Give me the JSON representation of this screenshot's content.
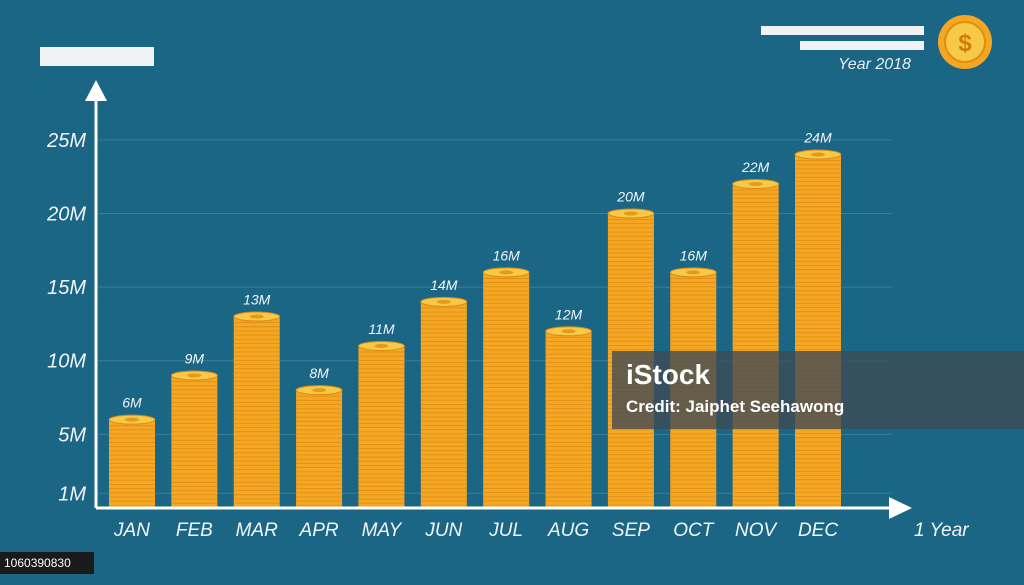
{
  "chart_data": {
    "type": "bar",
    "categories": [
      "JAN",
      "FEB",
      "MAR",
      "APR",
      "MAY",
      "JUN",
      "JUL",
      "AUG",
      "SEP",
      "OCT",
      "NOV",
      "DEC"
    ],
    "values": [
      6,
      9,
      13,
      8,
      11,
      14,
      16,
      12,
      20,
      16,
      22,
      24
    ],
    "value_labels": [
      "6M",
      "9M",
      "13M",
      "8M",
      "11M",
      "14M",
      "16M",
      "12M",
      "20M",
      "16M",
      "22M",
      "24M"
    ],
    "y_ticks": [
      {
        "value": 1,
        "label": "1M"
      },
      {
        "value": 5,
        "label": "5M"
      },
      {
        "value": 10,
        "label": "10M"
      },
      {
        "value": 15,
        "label": "15M"
      },
      {
        "value": 20,
        "label": "20M"
      },
      {
        "value": 25,
        "label": "25M"
      }
    ],
    "xlabel": "1 Year",
    "subtitle": "Year 2018",
    "ylim": [
      0,
      27.5
    ],
    "grid": true,
    "bar_style": "stacked-gold-coins"
  },
  "colors": {
    "background": "#1b6585",
    "coin_body": "#f5a623",
    "coin_top": "#f7c948",
    "coin_line": "#d98a14",
    "gridline": "#3a7f9c",
    "axis": "#ffffff"
  },
  "icons": {
    "header_badge": "dollar-coin-icon"
  },
  "watermark": {
    "logo": "iStock",
    "credit": "Credit: Jaiphet Seehawong"
  },
  "footer": {
    "image_id": "1060390830"
  }
}
